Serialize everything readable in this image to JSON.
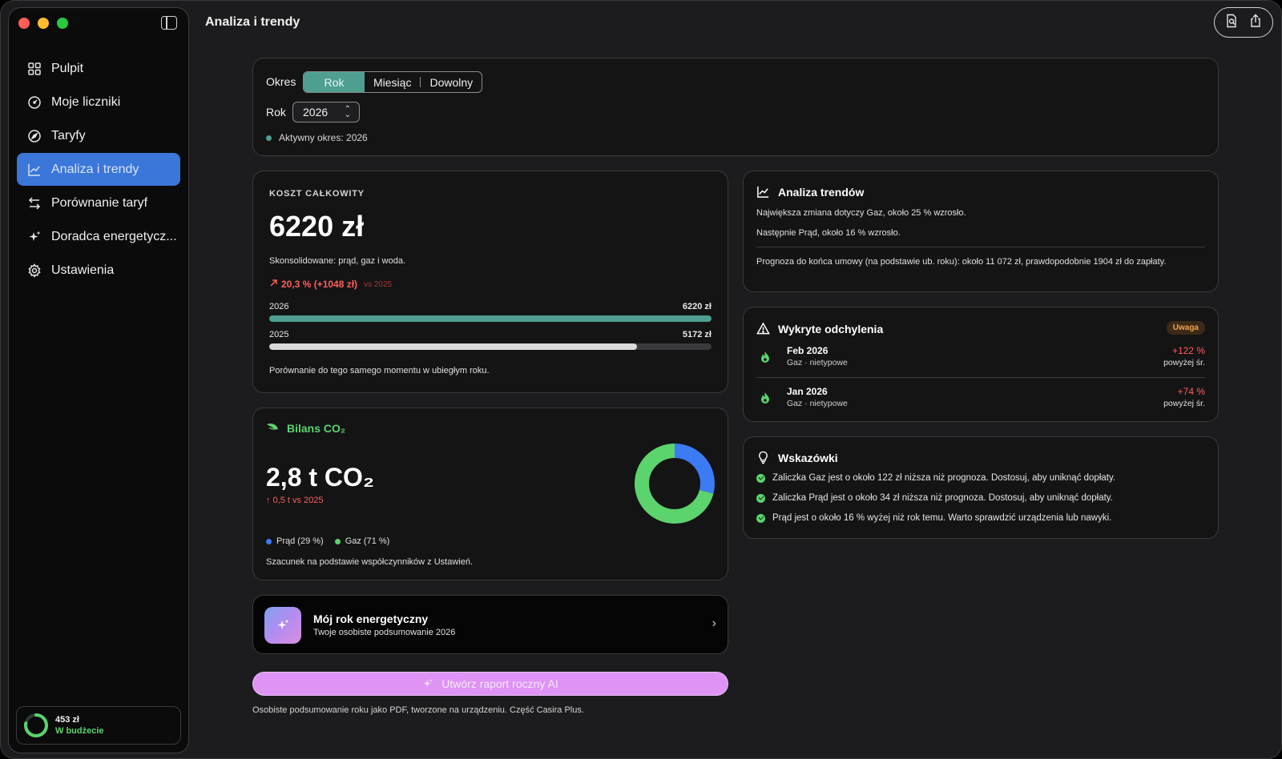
{
  "window": {
    "title": "Analiza i trendy"
  },
  "sidebar": {
    "items": [
      {
        "label": "Pulpit",
        "icon": "grid-icon",
        "active": false
      },
      {
        "label": "Moje liczniki",
        "icon": "gauge-icon",
        "active": false
      },
      {
        "label": "Taryfy",
        "icon": "compass-icon",
        "active": false
      },
      {
        "label": "Analiza i trendy",
        "icon": "chart-line-icon",
        "active": true
      },
      {
        "label": "Porównanie taryf",
        "icon": "swap-arrows-icon",
        "active": false
      },
      {
        "label": "Doradca energetycz...",
        "icon": "sparkles-icon",
        "active": false
      },
      {
        "label": "Ustawienia",
        "icon": "gear-icon",
        "active": false
      }
    ],
    "budget": {
      "amount": "453 zł",
      "label": "W budżecie",
      "ring_fraction": 0.78,
      "ring_color": "#5bd46e"
    }
  },
  "period": {
    "label": "Okres",
    "options": [
      "Rok",
      "Miesiąc",
      "Dowolny"
    ],
    "selected": "Rok",
    "year_label": "Rok",
    "year_value": "2026",
    "active_text": "Aktywny okres: 2026",
    "accent": "#4f9f91"
  },
  "cost": {
    "label": "KOSZT CAŁKOWITY",
    "value": "6220 zł",
    "subtitle": "Skonsolidowane: prąd, gaz i woda.",
    "change": "20,3 % (+1048 zł)",
    "change_vs": "vs 2025",
    "bars": [
      {
        "year": "2026",
        "value_label": "6220 zł",
        "value": 6220,
        "color": "#4f9f91"
      },
      {
        "year": "2025",
        "value_label": "5172 zł",
        "value": 5172,
        "color": "#d9d9d9"
      }
    ],
    "bar_max": 6220,
    "note": "Porównanie do tego samego momentu w ubiegłym roku."
  },
  "co2": {
    "title": "Bilans CO₂",
    "value": "2,8 t CO₂",
    "change": "↑ 0,5 t vs 2025",
    "legend": [
      {
        "label": "Prąd (29 %)",
        "value": 29,
        "color": "#3b7cf5"
      },
      {
        "label": "Gaz (71 %)",
        "value": 71,
        "color": "#5bd46e"
      }
    ],
    "note": "Szacunek na podstawie współczynników z Ustawień."
  },
  "my_year": {
    "title": "Mój rok energetyczny",
    "subtitle": "Twoje osobiste podsumowanie 2026"
  },
  "ai_report": {
    "button_label": "Utwórz raport roczny AI",
    "note": "Osobiste podsumowanie roku jako PDF, tworzone na urządzeniu. Część Casira Plus."
  },
  "trends": {
    "title": "Analiza trendów",
    "line1": "Największa zmiana dotyczy Gaz, około 25 % wzrosło.",
    "line2": "Następnie Prąd, około 16 % wzrosło.",
    "forecast": "Prognoza do końca umowy (na podstawie ub. roku): około 11 072 zł, prawdopodobnie 1904 zł do zapłaty."
  },
  "deviations": {
    "title": "Wykryte odchylenia",
    "badge": "Uwaga",
    "items": [
      {
        "period": "Feb 2026",
        "sub": "Gaz · nietypowe",
        "pct": "+122 %",
        "rel": "powyżej śr."
      },
      {
        "period": "Jan 2026",
        "sub": "Gaz · nietypowe",
        "pct": "+74 %",
        "rel": "powyżej śr."
      }
    ]
  },
  "tips": {
    "title": "Wskazówki",
    "items": [
      "Zaliczka Gaz jest o około 122 zł niższa niż prognoza. Dostosuj, aby uniknąć dopłaty.",
      "Zaliczka Prąd jest o około 34 zł niższa niż prognoza. Dostosuj, aby uniknąć dopłaty.",
      "Prąd jest o około 16 % wyżej niż rok temu. Warto sprawdzić urządzenia lub nawyki."
    ]
  },
  "colors": {
    "up": "#ff5e5e",
    "green": "#5bd46e",
    "active_nav": "#3b76d9",
    "ai": "#de93f5"
  }
}
